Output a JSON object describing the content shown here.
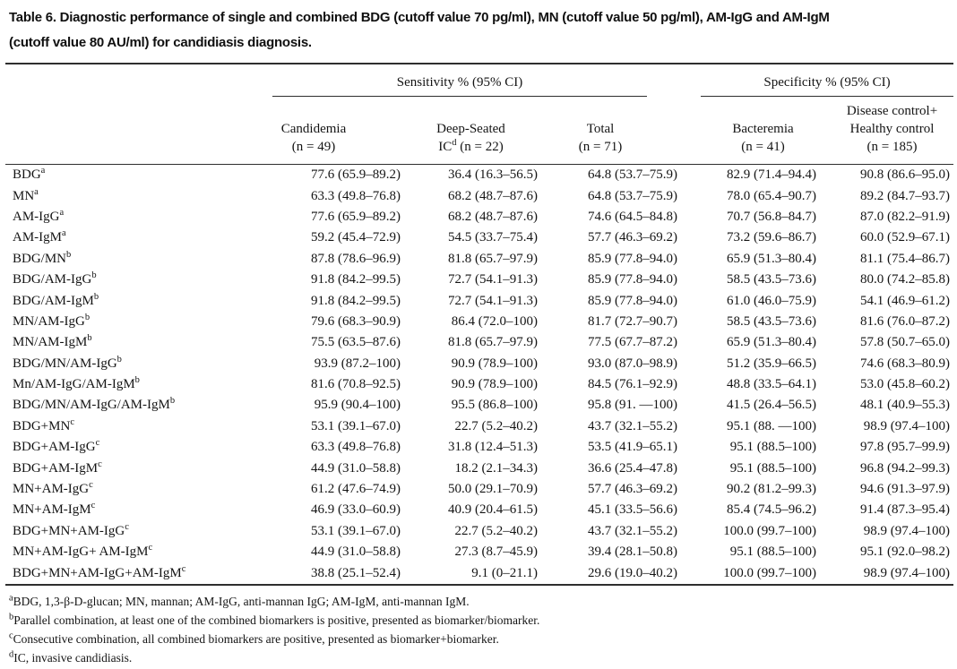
{
  "title": {
    "label": "Table 6.",
    "line1": " Diagnostic performance of single and combined BDG (cutoff value 70 pg/ml), MN (cutoff value 50 pg/ml), AM-IgG and AM-IgM",
    "line2": "(cutoff value 80 AU/ml) for candidiasis diagnosis."
  },
  "table": {
    "groups": {
      "sensitivity": "Sensitivity % (95% CI)",
      "specificity": "Specificity % (95% CI)"
    },
    "columns": [
      {
        "line1": "Candidemia",
        "line2": "(n = 49)"
      },
      {
        "line1": "Deep-Seated",
        "line2_pre": "IC",
        "line2_sup": "d",
        "line2_post": " (n = 22)"
      },
      {
        "line1": "Total",
        "line2": "(n = 71)"
      },
      {
        "line1": "Bacteremia",
        "line2": "(n = 41)"
      },
      {
        "line1": "Disease control+",
        "line2": "Healthy control",
        "line3": "(n = 185)"
      }
    ],
    "rows": [
      {
        "label": "BDG",
        "sup": "a",
        "values": [
          "77.6 (65.9–89.2)",
          "36.4 (16.3–56.5)",
          "64.8 (53.7–75.9)",
          "82.9 (71.4–94.4)",
          "90.8 (86.6–95.0)"
        ]
      },
      {
        "label": "MN",
        "sup": "a",
        "values": [
          "63.3 (49.8–76.8)",
          "68.2 (48.7–87.6)",
          "64.8 (53.7–75.9)",
          "78.0 (65.4–90.7)",
          "89.2 (84.7–93.7)"
        ]
      },
      {
        "label": "AM-IgG",
        "sup": "a",
        "values": [
          "77.6 (65.9–89.2)",
          "68.2 (48.7–87.6)",
          "74.6 (64.5–84.8)",
          "70.7 (56.8–84.7)",
          "87.0 (82.2–91.9)"
        ]
      },
      {
        "label": "AM-IgM",
        "sup": "a",
        "values": [
          "59.2 (45.4–72.9)",
          "54.5 (33.7–75.4)",
          "57.7 (46.3–69.2)",
          "73.2 (59.6–86.7)",
          "60.0 (52.9–67.1)"
        ]
      },
      {
        "label": "BDG/MN",
        "sup": "b",
        "values": [
          "87.8 (78.6–96.9)",
          "81.8 (65.7–97.9)",
          "85.9 (77.8–94.0)",
          "65.9 (51.3–80.4)",
          "81.1 (75.4–86.7)"
        ]
      },
      {
        "label": "BDG/AM-IgG",
        "sup": "b",
        "values": [
          "91.8 (84.2–99.5)",
          "72.7 (54.1–91.3)",
          "85.9 (77.8–94.0)",
          "58.5 (43.5–73.6)",
          "80.0 (74.2–85.8)"
        ]
      },
      {
        "label": "BDG/AM-IgM",
        "sup": "b",
        "values": [
          "91.8 (84.2–99.5)",
          "72.7 (54.1–91.3)",
          "85.9 (77.8–94.0)",
          "61.0 (46.0–75.9)",
          "54.1 (46.9–61.2)"
        ]
      },
      {
        "label": "MN/AM-IgG",
        "sup": "b",
        "values": [
          "79.6 (68.3–90.9)",
          "86.4 (72.0–100)",
          "81.7 (72.7–90.7)",
          "58.5 (43.5–73.6)",
          "81.6 (76.0–87.2)"
        ]
      },
      {
        "label": "MN/AM-IgM",
        "sup": "b",
        "values": [
          "75.5 (63.5–87.6)",
          "81.8 (65.7–97.9)",
          "77.5 (67.7–87.2)",
          "65.9 (51.3–80.4)",
          "57.8 (50.7–65.0)"
        ]
      },
      {
        "label": "BDG/MN/AM-IgG",
        "sup": "b",
        "values": [
          "93.9 (87.2–100)",
          "90.9 (78.9–100)",
          "93.0 (87.0–98.9)",
          "51.2 (35.9–66.5)",
          "74.6 (68.3–80.9)"
        ]
      },
      {
        "label": "Mn/AM-IgG/AM-IgM",
        "sup": "b",
        "values": [
          "81.6 (70.8–92.5)",
          "90.9 (78.9–100)",
          "84.5 (76.1–92.9)",
          "48.8 (33.5–64.1)",
          "53.0 (45.8–60.2)"
        ]
      },
      {
        "label": "BDG/MN/AM-IgG/AM-IgM",
        "sup": "b",
        "values": [
          "95.9 (90.4–100)",
          "95.5 (86.8–100)",
          "95.8 (91. —100)",
          "41.5 (26.4–56.5)",
          "48.1 (40.9–55.3)"
        ]
      },
      {
        "label": "BDG+MN",
        "sup": "c",
        "values": [
          "53.1 (39.1–67.0)",
          "22.7 (5.2–40.2)",
          "43.7 (32.1–55.2)",
          "95.1 (88. —100)",
          "98.9 (97.4–100)"
        ]
      },
      {
        "label": "BDG+AM-IgG",
        "sup": "c",
        "values": [
          "63.3 (49.8–76.8)",
          "31.8 (12.4–51.3)",
          "53.5 (41.9–65.1)",
          "95.1 (88.5–100)",
          "97.8 (95.7–99.9)"
        ]
      },
      {
        "label": "BDG+AM-IgM",
        "sup": "c",
        "values": [
          "44.9 (31.0–58.8)",
          "18.2 (2.1–34.3)",
          "36.6 (25.4–47.8)",
          "95.1 (88.5–100)",
          "96.8 (94.2–99.3)"
        ]
      },
      {
        "label": "MN+AM-IgG",
        "sup": "c",
        "values": [
          "61.2 (47.6–74.9)",
          "50.0 (29.1–70.9)",
          "57.7 (46.3–69.2)",
          "90.2 (81.2–99.3)",
          "94.6 (91.3–97.9)"
        ]
      },
      {
        "label": "MN+AM-IgM",
        "sup": "c",
        "values": [
          "46.9 (33.0–60.9)",
          "40.9 (20.4–61.5)",
          "45.1 (33.5–56.6)",
          "85.4 (74.5–96.2)",
          "91.4 (87.3–95.4)"
        ]
      },
      {
        "label": "BDG+MN+AM-IgG",
        "sup": "c",
        "values": [
          "53.1 (39.1–67.0)",
          "22.7 (5.2–40.2)",
          "43.7 (32.1–55.2)",
          "100.0 (99.7–100)",
          "98.9 (97.4–100)"
        ]
      },
      {
        "label": "MN+AM-IgG+ AM-IgM",
        "sup": "c",
        "values": [
          "44.9 (31.0–58.8)",
          "27.3 (8.7–45.9)",
          "39.4 (28.1–50.8)",
          "95.1 (88.5–100)",
          "95.1 (92.0–98.2)"
        ]
      },
      {
        "label": "BDG+MN+AM-IgG+AM-IgM",
        "sup": "c",
        "values": [
          "38.8 (25.1–52.4)",
          "9.1 (0–21.1)",
          "29.6 (19.0–40.2)",
          "100.0 (99.7–100)",
          "98.9 (97.4–100)"
        ]
      }
    ]
  },
  "footnotes": [
    {
      "sup": "a",
      "text": "BDG, 1,3-β-D-glucan; MN, mannan; AM-IgG, anti-mannan IgG; AM-IgM, anti-mannan IgM."
    },
    {
      "sup": "b",
      "text": "Parallel combination, at least one of the combined biomarkers is positive, presented as biomarker/biomarker."
    },
    {
      "sup": "c",
      "text": "Consecutive combination, all combined biomarkers are positive, presented as biomarker+biomarker."
    },
    {
      "sup": "d",
      "text": "IC, invasive candidiasis."
    }
  ]
}
